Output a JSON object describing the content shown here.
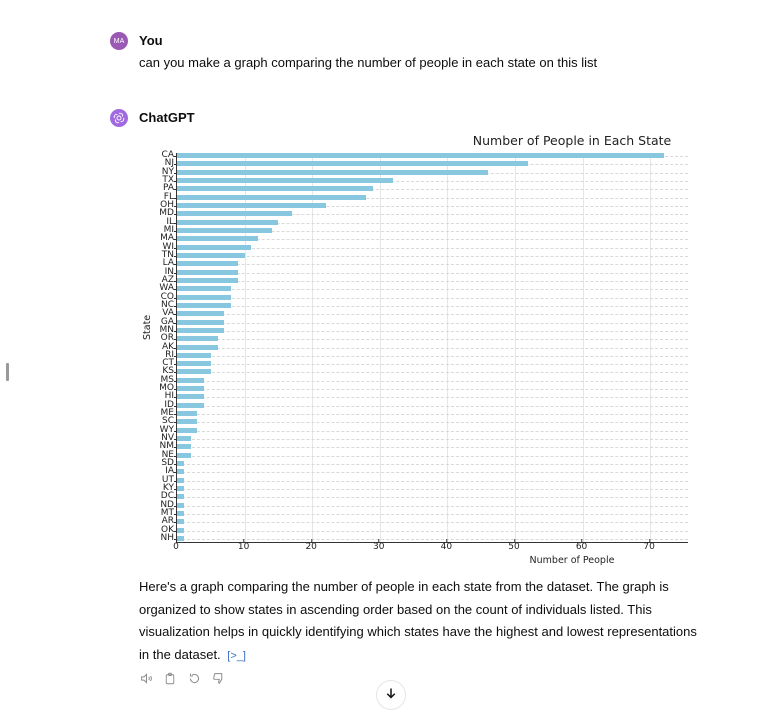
{
  "conversation": {
    "user": {
      "avatar_initials": "MA",
      "name": "You",
      "message": "can you make a graph comparing the number of people in each state on this list"
    },
    "assistant": {
      "name": "ChatGPT",
      "response": "Here's a graph comparing the number of people in each state from the dataset. The graph is organized to show states in ascending order based on the count of individuals listed. This visualization helps in quickly identifying which states have the highest and lowest representations in the dataset.",
      "code_link_icon": "[>_]",
      "actions": [
        "read-aloud-icon",
        "copy-icon",
        "regenerate-icon",
        "thumbs-down-icon"
      ]
    }
  },
  "scroll_down_button": "arrow-down-icon",
  "colors": {
    "bar": "#87c8e0",
    "user_avatar": "#9b59b6",
    "assistant_avatar": "#a26ae0",
    "link": "#3a6fc4"
  },
  "chart_data": {
    "type": "bar",
    "orientation": "horizontal",
    "title": "Number of People in Each State",
    "xlabel": "Number of People",
    "ylabel": "State",
    "xlim": [
      0,
      75.6
    ],
    "xticks": [
      0,
      10,
      20,
      30,
      40,
      50,
      60,
      70
    ],
    "grid": true,
    "categories": [
      "CA",
      "NJ",
      "NY",
      "TX",
      "PA",
      "FL",
      "OH",
      "MD",
      "IL",
      "MI",
      "MA",
      "WI",
      "TN",
      "LA",
      "IN",
      "AZ",
      "WA",
      "CO",
      "NC",
      "VA",
      "GA",
      "MN",
      "OR",
      "AK",
      "RI",
      "CT",
      "KS",
      "MS",
      "MO",
      "HI",
      "ID",
      "ME",
      "SC",
      "WY",
      "NV",
      "NM",
      "NE",
      "SD",
      "IA",
      "UT",
      "KY",
      "DC",
      "ND",
      "MT",
      "AR",
      "OK",
      "NH"
    ],
    "values": [
      72,
      52,
      46,
      32,
      29,
      28,
      22,
      17,
      15,
      14,
      12,
      11,
      10,
      9,
      9,
      9,
      8,
      8,
      8,
      7,
      7,
      7,
      6,
      6,
      5,
      5,
      5,
      4,
      4,
      4,
      4,
      3,
      3,
      3,
      2,
      2,
      2,
      1,
      1,
      1,
      1,
      1,
      1,
      1,
      1,
      1,
      1
    ]
  }
}
